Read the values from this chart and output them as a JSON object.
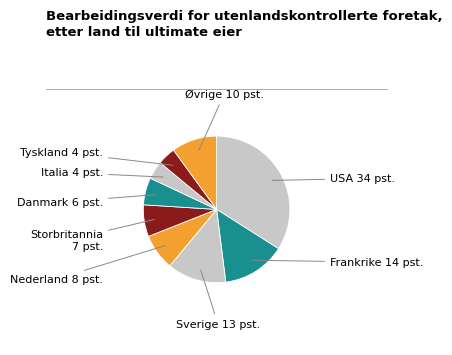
{
  "title": "Bearbeidingsverdi for utenlandskontrollerte foretak,\netter land til ultimate eier",
  "slices": [
    {
      "label": "USA 34 pst.",
      "value": 34,
      "color": "#c8c8c8"
    },
    {
      "label": "Frankrike 14 pst.",
      "value": 14,
      "color": "#1a8f8f"
    },
    {
      "label": "Sverige 13 pst.",
      "value": 13,
      "color": "#c8c8c8"
    },
    {
      "label": "Nederland 8 pst.",
      "value": 8,
      "color": "#f4a030"
    },
    {
      "label": "Storbritannia\n7 pst.",
      "value": 7,
      "color": "#8b1a1a"
    },
    {
      "label": "Danmark 6 pst.",
      "value": 6,
      "color": "#1a8f8f"
    },
    {
      "label": "Italia 4 pst.",
      "value": 4,
      "color": "#c8c8c8"
    },
    {
      "label": "Tyskland 4 pst.",
      "value": 4,
      "color": "#8b1a1a"
    },
    {
      "label": "Øvrige 10 pst.",
      "value": 10,
      "color": "#f4a030"
    }
  ],
  "title_fontsize": 9.5,
  "label_fontsize": 8,
  "background_color": "#ffffff"
}
